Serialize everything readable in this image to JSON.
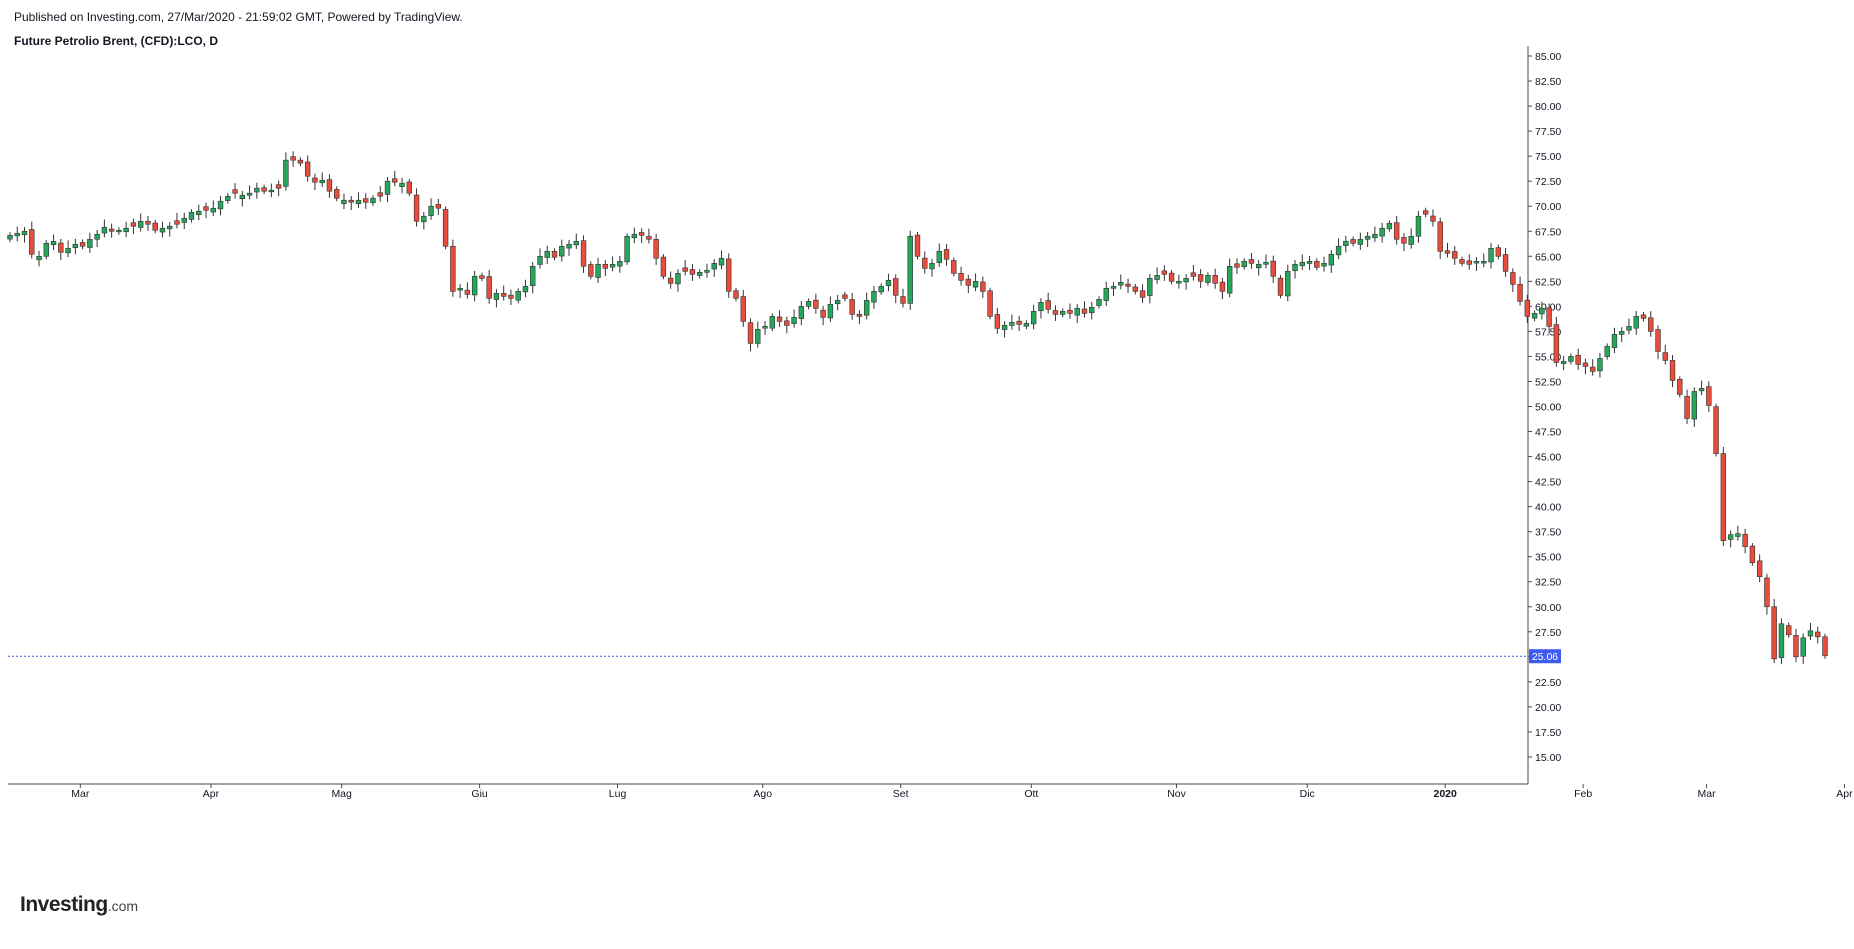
{
  "header": {
    "published": "Published on Investing.com, 27/Mar/2020 - 21:59:02 GMT, Powered by TradingView.",
    "symbol": "Future Petrolio Brent, (CFD):LCO, D"
  },
  "logo": {
    "text": "Investing",
    "suffix": ".com"
  },
  "colors": {
    "up": "#26a65b",
    "down": "#e74c3c",
    "last_price_line": "#3d5af1",
    "axis": "#4a4a4a",
    "text": "#131722"
  },
  "chart_data": {
    "type": "candlestick",
    "title": "Future Petrolio Brent, (CFD):LCO, D",
    "y_range": [
      12.5,
      86
    ],
    "y_ticks": [
      "15.00",
      "17.50",
      "20.00",
      "22.50",
      "25.00",
      "27.50",
      "30.00",
      "32.50",
      "35.00",
      "37.50",
      "40.00",
      "42.50",
      "45.00",
      "47.50",
      "50.00",
      "52.50",
      "55.00",
      "57.50",
      "60.00",
      "62.50",
      "65.00",
      "67.50",
      "70.00",
      "72.50",
      "75.00",
      "77.50",
      "80.00",
      "82.50",
      "85.00"
    ],
    "x_ticks": [
      {
        "label": "Mar",
        "index": 5
      },
      {
        "label": "Apr",
        "index": 23
      },
      {
        "label": "Mag",
        "index": 41
      },
      {
        "label": "Giu",
        "index": 60
      },
      {
        "label": "Lug",
        "index": 79
      },
      {
        "label": "Ago",
        "index": 99
      },
      {
        "label": "Set",
        "index": 118
      },
      {
        "label": "Ott",
        "index": 136
      },
      {
        "label": "Nov",
        "index": 156
      },
      {
        "label": "Dic",
        "index": 174
      },
      {
        "label": "2020",
        "index": 193
      },
      {
        "label": "Feb",
        "index": 212
      },
      {
        "label": "Mar",
        "index": 229
      },
      {
        "label": "Apr",
        "index": 248
      }
    ],
    "last_price": "25.06",
    "last_price_value": 25.06,
    "closes": [
      67.1,
      67.3,
      67.5,
      65.2,
      65.0,
      66.3,
      66.5,
      65.4,
      65.8,
      66.2,
      66.0,
      66.7,
      67.2,
      67.9,
      67.5,
      67.6,
      67.8,
      68.0,
      68.5,
      68.2,
      67.6,
      67.8,
      68.0,
      68.2,
      68.8,
      69.4,
      69.5,
      69.6,
      69.8,
      70.5,
      71.0,
      71.3,
      71.1,
      71.3,
      71.8,
      71.5,
      71.6,
      71.8,
      74.6,
      74.6,
      74.3,
      73.0,
      72.4,
      72.6,
      71.5,
      70.8,
      70.6,
      70.4,
      70.6,
      70.4,
      70.8,
      71.0,
      72.5,
      72.4,
      72.3,
      71.3,
      68.5,
      69.0,
      70.0,
      69.8,
      66.0,
      61.5,
      61.8,
      61.2,
      63.0,
      62.8,
      60.8,
      61.3,
      61.0,
      60.8,
      61.5,
      62.0,
      64.0,
      65.0,
      65.5,
      64.9,
      66.0,
      66.2,
      66.5,
      64.0,
      63.0,
      64.2,
      63.8,
      64.2,
      64.5,
      67.0,
      67.2,
      67.1,
      66.7,
      64.8,
      63.0,
      62.3,
      63.3,
      63.5,
      63.2,
      63.4,
      63.6,
      64.3,
      64.8,
      61.5,
      60.8,
      58.5,
      56.3,
      57.7,
      58.0,
      59.0,
      58.5,
      58.1,
      58.9,
      60.0,
      60.5,
      59.8,
      58.9,
      60.2,
      60.6,
      60.8,
      59.2,
      59.0,
      60.6,
      61.5,
      62.0,
      62.6,
      61.1,
      60.3,
      67.0,
      65.0,
      63.8,
      64.3,
      65.5,
      64.7,
      63.3,
      62.6,
      62.1,
      62.5,
      61.5,
      59.0,
      57.8,
      58.1,
      58.4,
      58.2,
      58.3,
      59.5,
      60.4,
      59.7,
      59.2,
      59.5,
      59.3,
      59.8,
      59.3,
      59.9,
      60.7,
      61.8,
      62.0,
      62.4,
      62.0,
      61.5,
      60.9,
      62.8,
      63.1,
      63.2,
      62.5,
      62.5,
      62.8,
      63.0,
      62.5,
      63.1,
      62.3,
      61.5,
      64.0,
      63.9,
      64.5,
      64.3,
      64.2,
      64.4,
      63.0,
      61.1,
      63.5,
      64.2,
      64.4,
      64.5,
      63.9,
      64.3,
      65.2,
      66.0,
      66.5,
      66.3,
      66.7,
      67.0,
      67.2,
      67.8,
      68.3,
      66.7,
      66.3,
      67.0,
      69.0,
      69.2,
      68.5,
      65.5,
      65.3,
      64.8,
      64.3,
      64.2,
      64.5,
      64.5,
      65.8,
      65.0,
      63.5,
      62.2,
      60.5,
      59.0,
      59.3,
      59.8,
      58.0,
      54.4,
      54.5,
      55.0,
      54.2,
      54.0,
      53.5,
      54.8,
      56.0,
      57.2,
      57.5,
      58.0,
      59.0,
      58.8,
      57.5,
      55.5,
      54.6,
      52.6,
      51.2,
      48.8,
      51.5,
      51.8,
      50.1,
      45.3,
      36.6,
      37.2,
      37.3,
      36.0,
      34.4,
      33.0,
      30.0,
      24.8,
      28.3,
      27.2,
      25.0,
      26.9,
      27.6,
      27.0,
      25.1
    ],
    "ohlc_series": "daily candles, Mar 2019 - Mar 2020"
  }
}
